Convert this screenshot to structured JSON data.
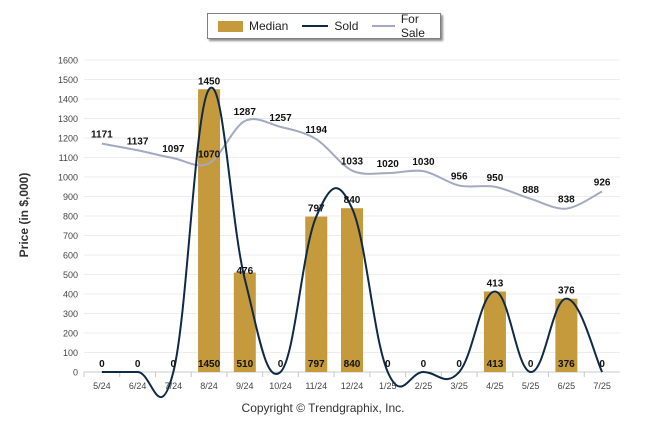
{
  "legend": {
    "items": [
      {
        "label": "Median",
        "color": "#c49a3c",
        "kind": "bar"
      },
      {
        "label": "Sold",
        "color": "#0f2a47",
        "kind": "line"
      },
      {
        "label": "For Sale",
        "color": "#a3a9c0",
        "kind": "line"
      }
    ]
  },
  "footer": {
    "copyright": "Copyright © Trendgraphix, Inc."
  },
  "chart_data": {
    "type": "bar",
    "ylabel": "Price (in $,000)",
    "ylim": [
      0,
      1600
    ],
    "yticks": [
      0,
      100,
      200,
      300,
      400,
      500,
      600,
      700,
      800,
      900,
      1000,
      1100,
      1200,
      1300,
      1400,
      1500,
      1600
    ],
    "grid": true,
    "legend_position": "top-center",
    "categories": [
      "5/24",
      "6/24",
      "7/24",
      "8/24",
      "9/24",
      "10/24",
      "11/24",
      "12/24",
      "1/25",
      "2/25",
      "3/25",
      "4/25",
      "5/25",
      "6/25",
      "7/25"
    ],
    "series": [
      {
        "name": "Median",
        "type": "bar",
        "color": "#c49a3c",
        "values": [
          0,
          0,
          0,
          1450,
          510,
          0,
          797,
          840,
          0,
          0,
          0,
          413,
          0,
          376,
          0
        ]
      },
      {
        "name": "Sold",
        "type": "line",
        "color": "#0f2a47",
        "values": [
          0,
          0,
          0,
          1450,
          476,
          0,
          797,
          840,
          0,
          0,
          0,
          413,
          0,
          376,
          0
        ]
      },
      {
        "name": "For Sale",
        "type": "line",
        "color": "#a3a9c0",
        "values": [
          1171,
          1137,
          1097,
          1070,
          1287,
          1257,
          1194,
          1033,
          1020,
          1030,
          956,
          950,
          888,
          838,
          926
        ]
      }
    ]
  }
}
